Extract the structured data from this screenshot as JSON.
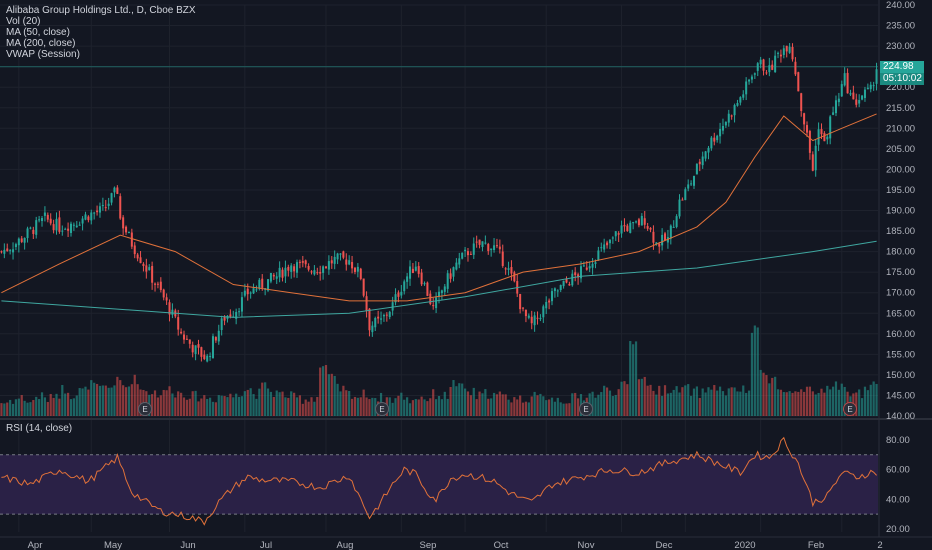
{
  "header": {
    "title": "Alibaba Group Holdings Ltd., D, Cboe BZX",
    "indicators": [
      "Vol (20)",
      "MA (50, close)",
      "MA (200, close)",
      "VWAP (Session)"
    ]
  },
  "price_tags": {
    "last": "224.98",
    "countdown": "05:10:02"
  },
  "rsi_panel": {
    "label": "RSI (14, close)"
  },
  "earnings_marker": "E",
  "colors": {
    "background": "#131722",
    "up": "#26a69a",
    "down": "#ef5350",
    "ma50": "#e0713a",
    "ma200": "#3fa7a0",
    "rsi_line": "#e0713a",
    "rsi_band": "#2a2146"
  },
  "chart_data": [
    {
      "type": "candlestick",
      "title": "Alibaba Group Holdings Ltd., D, Cboe BZX",
      "x_ticks": [
        "Apr",
        "May",
        "Jun",
        "Jul",
        "Aug",
        "Sep",
        "Oct",
        "Nov",
        "Dec",
        "2020",
        "Feb",
        "2"
      ],
      "y_ticks": [
        "240.00",
        "235.00",
        "230.00",
        "225.00",
        "220.00",
        "215.00",
        "210.00",
        "205.00",
        "200.00",
        "195.00",
        "190.00",
        "185.00",
        "180.00",
        "175.00",
        "170.00",
        "165.00",
        "160.00",
        "155.00",
        "150.00",
        "145.00",
        "140.00"
      ],
      "ylim": [
        140,
        240
      ],
      "close_path": [
        [
          0,
          180
        ],
        [
          5,
          182
        ],
        [
          10,
          185
        ],
        [
          15,
          188
        ],
        [
          20,
          186
        ],
        [
          25,
          187
        ],
        [
          30,
          189
        ],
        [
          35,
          190
        ],
        [
          40,
          195
        ],
        [
          41,
          188
        ],
        [
          45,
          182
        ],
        [
          50,
          176
        ],
        [
          55,
          170
        ],
        [
          58,
          166
        ],
        [
          62,
          160
        ],
        [
          67,
          156
        ],
        [
          71,
          154
        ],
        [
          73,
          158
        ],
        [
          77,
          164
        ],
        [
          81,
          166
        ],
        [
          85,
          170
        ],
        [
          90,
          172
        ],
        [
          95,
          174
        ],
        [
          100,
          177
        ],
        [
          105,
          176
        ],
        [
          110,
          176
        ],
        [
          115,
          178
        ],
        [
          120,
          178
        ],
        [
          124,
          174
        ],
        [
          127,
          162
        ],
        [
          131,
          163
        ],
        [
          135,
          167
        ],
        [
          139,
          173
        ],
        [
          143,
          177
        ],
        [
          147,
          170
        ],
        [
          149,
          166
        ],
        [
          153,
          172
        ],
        [
          157,
          177
        ],
        [
          161,
          180
        ],
        [
          166,
          182
        ],
        [
          170,
          181
        ],
        [
          174,
          177
        ],
        [
          177,
          172
        ],
        [
          180,
          165
        ],
        [
          183,
          162
        ],
        [
          187,
          166
        ],
        [
          191,
          170
        ],
        [
          196,
          173
        ],
        [
          200,
          175
        ],
        [
          205,
          179
        ],
        [
          210,
          182
        ],
        [
          214,
          186
        ],
        [
          218,
          186
        ],
        [
          222,
          188
        ],
        [
          226,
          182
        ],
        [
          230,
          183
        ],
        [
          234,
          192
        ],
        [
          238,
          197
        ],
        [
          243,
          205
        ],
        [
          248,
          210
        ],
        [
          253,
          215
        ],
        [
          257,
          220
        ],
        [
          261,
          226
        ],
        [
          265,
          224
        ],
        [
          268,
          228
        ],
        [
          272,
          231
        ],
        [
          274,
          224
        ],
        [
          276,
          215
        ],
        [
          278,
          208
        ],
        [
          280,
          200
        ],
        [
          282,
          211
        ],
        [
          284,
          206
        ],
        [
          286,
          212
        ],
        [
          288,
          216
        ],
        [
          291,
          222
        ],
        [
          294,
          216
        ],
        [
          297,
          218
        ],
        [
          300,
          219
        ],
        [
          302,
          225
        ]
      ],
      "ma50_path": [
        [
          0,
          170
        ],
        [
          20,
          177
        ],
        [
          41,
          184
        ],
        [
          60,
          180
        ],
        [
          80,
          172
        ],
        [
          100,
          170
        ],
        [
          120,
          168
        ],
        [
          140,
          168
        ],
        [
          160,
          170
        ],
        [
          180,
          175
        ],
        [
          200,
          177
        ],
        [
          220,
          180
        ],
        [
          240,
          186
        ],
        [
          250,
          192
        ],
        [
          260,
          203
        ],
        [
          270,
          213
        ],
        [
          280,
          207
        ],
        [
          290,
          210
        ],
        [
          302,
          213.5
        ]
      ],
      "ma200_path": [
        [
          0,
          168
        ],
        [
          40,
          166
        ],
        [
          80,
          164
        ],
        [
          120,
          165
        ],
        [
          160,
          169
        ],
        [
          200,
          174
        ],
        [
          240,
          176
        ],
        [
          280,
          180
        ],
        [
          302,
          182.5
        ]
      ],
      "volume_relative": [
        0.15,
        0.18,
        0.2,
        0.16,
        0.22,
        0.19,
        0.25,
        0.3,
        0.24,
        0.28,
        0.35,
        0.3,
        0.32,
        0.38,
        0.33,
        0.41,
        0.29,
        0.27,
        0.25,
        0.3,
        0.26,
        0.24,
        0.22,
        0.21,
        0.2,
        0.23,
        0.22,
        0.27,
        0.3,
        0.25,
        0.33,
        0.26,
        0.24,
        0.22,
        0.2,
        0.19,
        0.21,
        0.55,
        0.42,
        0.3,
        0.25,
        0.22,
        0.24,
        0.21,
        0.2,
        0.19,
        0.22,
        0.18,
        0.21,
        0.2,
        0.24,
        0.22,
        0.36,
        0.31,
        0.26,
        0.22,
        0.25,
        0.23,
        0.21,
        0.2,
        0.19,
        0.21,
        0.2,
        0.22,
        0.19,
        0.18,
        0.2,
        0.22,
        0.25,
        0.24,
        0.3,
        0.28,
        0.33,
        0.82,
        0.45,
        0.32,
        0.28,
        0.31,
        0.28,
        0.3,
        0.27,
        0.26,
        0.33,
        0.29,
        0.27,
        0.3,
        0.28,
        0.95,
        0.5,
        0.42,
        0.28,
        0.26,
        0.24,
        0.27,
        0.25,
        0.3,
        0.35,
        0.31,
        0.27,
        0.25,
        0.3,
        0.33
      ],
      "last_value": 224.98
    },
    {
      "type": "line",
      "title": "RSI (14, close)",
      "y_ticks": [
        "80.00",
        "60.00",
        "40.00",
        "20.00"
      ],
      "ylim": [
        18,
        88
      ],
      "band": [
        30,
        70
      ],
      "rsi_path": [
        [
          0,
          55
        ],
        [
          10,
          50
        ],
        [
          20,
          60
        ],
        [
          30,
          52
        ],
        [
          40,
          68
        ],
        [
          45,
          45
        ],
        [
          50,
          38
        ],
        [
          55,
          32
        ],
        [
          60,
          30
        ],
        [
          65,
          28
        ],
        [
          70,
          25
        ],
        [
          75,
          38
        ],
        [
          80,
          48
        ],
        [
          85,
          55
        ],
        [
          90,
          53
        ],
        [
          100,
          52
        ],
        [
          110,
          48
        ],
        [
          115,
          52
        ],
        [
          120,
          56
        ],
        [
          124,
          40
        ],
        [
          127,
          28
        ],
        [
          131,
          38
        ],
        [
          135,
          50
        ],
        [
          139,
          60
        ],
        [
          143,
          57
        ],
        [
          147,
          45
        ],
        [
          150,
          40
        ],
        [
          155,
          54
        ],
        [
          160,
          57
        ],
        [
          165,
          55
        ],
        [
          170,
          52
        ],
        [
          175,
          45
        ],
        [
          180,
          40
        ],
        [
          183,
          38
        ],
        [
          190,
          50
        ],
        [
          200,
          55
        ],
        [
          210,
          60
        ],
        [
          220,
          58
        ],
        [
          230,
          65
        ],
        [
          240,
          70
        ],
        [
          250,
          62
        ],
        [
          255,
          58
        ],
        [
          260,
          70
        ],
        [
          265,
          68
        ],
        [
          270,
          80
        ],
        [
          275,
          64
        ],
        [
          280,
          38
        ],
        [
          285,
          42
        ],
        [
          290,
          58
        ],
        [
          295,
          55
        ],
        [
          300,
          58
        ]
      ]
    }
  ]
}
